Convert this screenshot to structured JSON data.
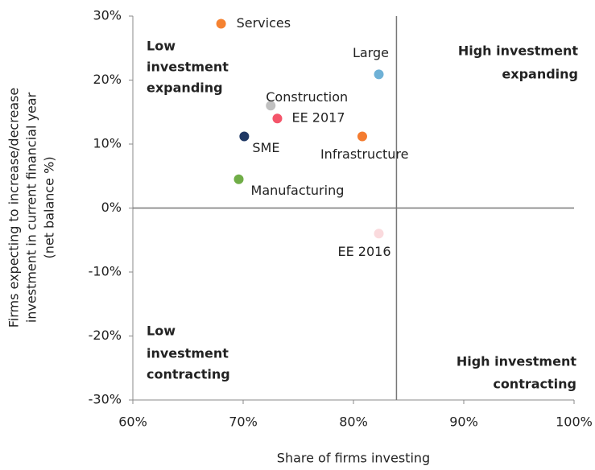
{
  "chart_data": {
    "type": "scatter",
    "x_label": "Share of firms investing",
    "y_label": [
      "Firms expecting to increase/decrease",
      "investment in current financial year",
      "(net balance %)"
    ],
    "points": [
      {
        "name": "Services",
        "x": 68.0,
        "y": 28.8,
        "color": "#f58231"
      },
      {
        "name": "Large",
        "x": 82.3,
        "y": 20.9,
        "color": "#6fb1d6"
      },
      {
        "name": "Construction",
        "x": 72.5,
        "y": 16.0,
        "color": "#c0c0c0"
      },
      {
        "name": "EE 2017",
        "x": 73.1,
        "y": 14.0,
        "color": "#f4556a"
      },
      {
        "name": "SME",
        "x": 70.1,
        "y": 11.2,
        "color": "#1f3864"
      },
      {
        "name": "Infrastructure",
        "x": 80.8,
        "y": 11.2,
        "color": "#f47c30"
      },
      {
        "name": "Manufacturing",
        "x": 69.6,
        "y": 4.5,
        "color": "#70ad47"
      },
      {
        "name": "EE 2016",
        "x": 82.3,
        "y": -4.0,
        "color": "#fadadd"
      }
    ],
    "quadrants": [
      {
        "lines": [
          "Low",
          "investment",
          "expanding"
        ]
      },
      {
        "lines": [
          "High investment",
          "expanding"
        ]
      },
      {
        "lines": [
          "Low",
          "investment",
          "contracting"
        ]
      },
      {
        "lines": [
          "High investment",
          "contracting"
        ]
      }
    ],
    "xref": 83.9,
    "yref": 0,
    "xlim": [
      60,
      100
    ],
    "ylim": [
      -30,
      30
    ],
    "xticks": [
      {
        "value": 60,
        "label": "60%"
      },
      {
        "value": 70,
        "label": "70%"
      },
      {
        "value": 80,
        "label": "80%"
      },
      {
        "value": 90,
        "label": "90%"
      },
      {
        "value": 100,
        "label": "100%"
      }
    ],
    "yticks": [
      {
        "value": -30,
        "label": "-30%"
      },
      {
        "value": -20,
        "label": "-20%"
      },
      {
        "value": -10,
        "label": "-10%"
      },
      {
        "value": 0,
        "label": "0%"
      },
      {
        "value": 10,
        "label": "10%"
      },
      {
        "value": 20,
        "label": "20%"
      },
      {
        "value": 30,
        "label": "30%"
      }
    ]
  }
}
